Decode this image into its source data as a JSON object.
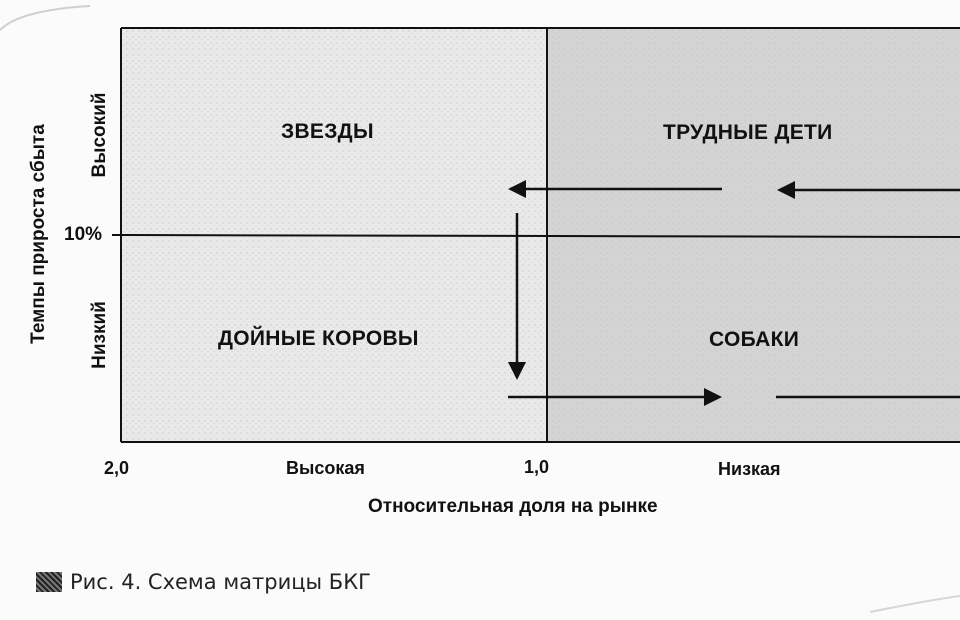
{
  "matrix": {
    "quadrants": {
      "top_left": "ЗВЕЗДЫ",
      "top_right": "ТРУДНЫЕ ДЕТИ",
      "bottom_left": "ДОЙНЫЕ КОРОВЫ",
      "bottom_right": "СОБАКИ"
    },
    "y_axis": {
      "title": "Темпы прироста сбыта",
      "high": "Высокий",
      "low": "Низкий",
      "threshold": "10%"
    },
    "x_axis": {
      "title": "Относительная доля на рынке",
      "tick_left": "2,0",
      "high": "Высокая",
      "tick_mid": "1,0",
      "low": "Низкая"
    },
    "colors": {
      "left_half": "#e9e9e9",
      "right_half": "#d4d4d4",
      "ink": "#111111"
    }
  },
  "caption": {
    "text": "Рис. 4. Схема матрицы БКГ"
  }
}
